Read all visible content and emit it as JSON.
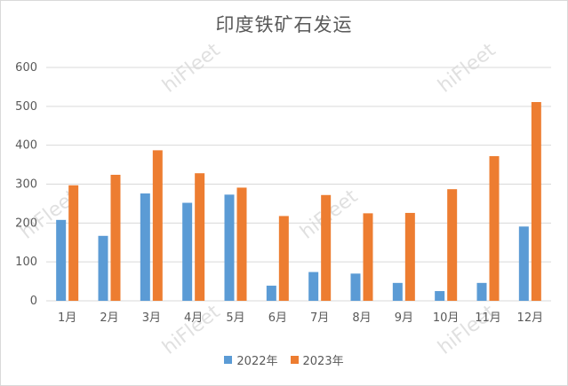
{
  "chart_data": {
    "type": "bar",
    "title": "印度铁矿石发运",
    "categories": [
      "1月",
      "2月",
      "3月",
      "4月",
      "5月",
      "6月",
      "7月",
      "8月",
      "9月",
      "10月",
      "11月",
      "12月"
    ],
    "series": [
      {
        "name": "2022年",
        "color": "#5b9bd5",
        "values": [
          208,
          167,
          276,
          252,
          273,
          39,
          74,
          70,
          46,
          25,
          46,
          191
        ]
      },
      {
        "name": "2023年",
        "color": "#ed7d31",
        "values": [
          297,
          324,
          387,
          328,
          291,
          218,
          272,
          225,
          226,
          287,
          372,
          511
        ]
      }
    ],
    "ylim": [
      0,
      600
    ],
    "yticks": [
      0,
      100,
      200,
      300,
      400,
      500,
      600
    ],
    "grid": true,
    "legend": "bottom"
  },
  "watermark": "hiFleet"
}
